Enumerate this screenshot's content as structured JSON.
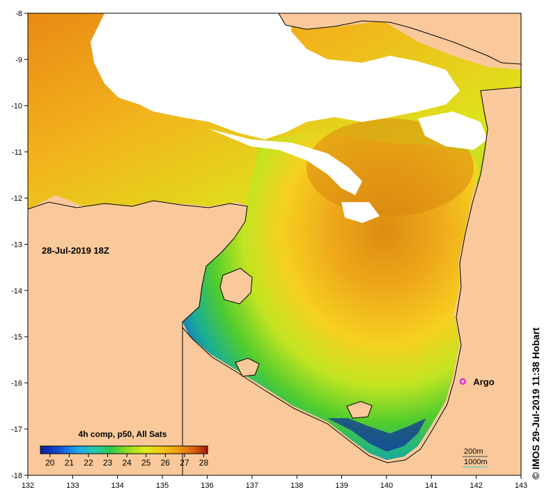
{
  "map": {
    "date_label": "28-Jul-2019 18Z",
    "x_ticks": [
      "132",
      "133",
      "134",
      "135",
      "136",
      "137",
      "138",
      "139",
      "140",
      "141",
      "142",
      "143"
    ],
    "y_ticks": [
      "-8",
      "-9",
      "-10",
      "-11",
      "-12",
      "-13",
      "-14",
      "-15",
      "-16",
      "-17",
      "-18"
    ],
    "x_range": [
      132,
      143
    ],
    "y_range": [
      -18,
      -8
    ],
    "colors": {
      "land": "#f9c99b",
      "cloud": "#ffffff",
      "coast": "#000000",
      "argo": "#e020e0"
    }
  },
  "legend": {
    "title": "4h comp, p50, All Sats",
    "ticks": [
      "20",
      "21",
      "22",
      "23",
      "24",
      "25",
      "26",
      "27",
      "28"
    ],
    "range": [
      19.5,
      28.2
    ]
  },
  "argo": {
    "label": "Argo",
    "lon": 141.7,
    "lat": -15.97
  },
  "contours": {
    "label_200m": "200m",
    "label_1000m": "1000m"
  },
  "credit": {
    "text": "© IMOS 29-Jul-2019 11:38 Hobart"
  }
}
